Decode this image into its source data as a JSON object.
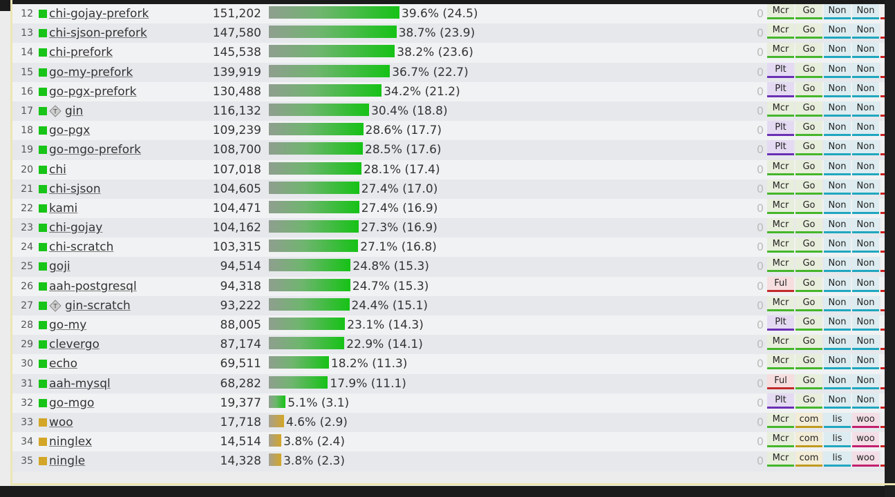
{
  "rows": [
    {
      "rank": "12",
      "lang": "go",
      "name": "chi-gojay-prefork",
      "rps": "151,202",
      "pct_label": "39.6% (24.5)",
      "pct": 39.6,
      "test": false,
      "errors": "0",
      "tags": [
        "Mcr",
        "Go",
        "Non",
        "Non"
      ]
    },
    {
      "rank": "13",
      "lang": "go",
      "name": "chi-sjson-prefork",
      "rps": "147,580",
      "pct_label": "38.7% (23.9)",
      "pct": 38.7,
      "test": false,
      "errors": "0",
      "tags": [
        "Mcr",
        "Go",
        "Non",
        "Non"
      ]
    },
    {
      "rank": "14",
      "lang": "go",
      "name": "chi-prefork",
      "rps": "145,538",
      "pct_label": "38.2% (23.6)",
      "pct": 38.2,
      "test": false,
      "errors": "0",
      "tags": [
        "Mcr",
        "Go",
        "Non",
        "Non"
      ]
    },
    {
      "rank": "15",
      "lang": "go",
      "name": "go-my-prefork",
      "rps": "139,919",
      "pct_label": "36.7% (22.7)",
      "pct": 36.7,
      "test": false,
      "errors": "0",
      "tags": [
        "Plt",
        "Go",
        "Non",
        "Non"
      ]
    },
    {
      "rank": "16",
      "lang": "go",
      "name": "go-pgx-prefork",
      "rps": "130,488",
      "pct_label": "34.2% (21.2)",
      "pct": 34.2,
      "test": false,
      "errors": "0",
      "tags": [
        "Plt",
        "Go",
        "Non",
        "Non"
      ]
    },
    {
      "rank": "17",
      "lang": "go",
      "name": "gin",
      "rps": "116,132",
      "pct_label": "30.4% (18.8)",
      "pct": 30.4,
      "test": true,
      "errors": "0",
      "tags": [
        "Mcr",
        "Go",
        "Non",
        "Non"
      ]
    },
    {
      "rank": "18",
      "lang": "go",
      "name": "go-pgx",
      "rps": "109,239",
      "pct_label": "28.6% (17.7)",
      "pct": 28.6,
      "test": false,
      "errors": "0",
      "tags": [
        "Plt",
        "Go",
        "Non",
        "Non"
      ]
    },
    {
      "rank": "19",
      "lang": "go",
      "name": "go-mgo-prefork",
      "rps": "108,700",
      "pct_label": "28.5% (17.6)",
      "pct": 28.5,
      "test": false,
      "errors": "0",
      "tags": [
        "Plt",
        "Go",
        "Non",
        "Non"
      ]
    },
    {
      "rank": "20",
      "lang": "go",
      "name": "chi",
      "rps": "107,018",
      "pct_label": "28.1% (17.4)",
      "pct": 28.1,
      "test": false,
      "errors": "0",
      "tags": [
        "Mcr",
        "Go",
        "Non",
        "Non"
      ]
    },
    {
      "rank": "21",
      "lang": "go",
      "name": "chi-sjson",
      "rps": "104,605",
      "pct_label": "27.4% (17.0)",
      "pct": 27.4,
      "test": false,
      "errors": "0",
      "tags": [
        "Mcr",
        "Go",
        "Non",
        "Non"
      ]
    },
    {
      "rank": "22",
      "lang": "go",
      "name": "kami",
      "rps": "104,471",
      "pct_label": "27.4% (16.9)",
      "pct": 27.4,
      "test": false,
      "errors": "0",
      "tags": [
        "Mcr",
        "Go",
        "Non",
        "Non"
      ]
    },
    {
      "rank": "23",
      "lang": "go",
      "name": "chi-gojay",
      "rps": "104,162",
      "pct_label": "27.3% (16.9)",
      "pct": 27.3,
      "test": false,
      "errors": "0",
      "tags": [
        "Mcr",
        "Go",
        "Non",
        "Non"
      ]
    },
    {
      "rank": "24",
      "lang": "go",
      "name": "chi-scratch",
      "rps": "103,315",
      "pct_label": "27.1% (16.8)",
      "pct": 27.1,
      "test": false,
      "errors": "0",
      "tags": [
        "Mcr",
        "Go",
        "Non",
        "Non"
      ]
    },
    {
      "rank": "25",
      "lang": "go",
      "name": "goji",
      "rps": "94,514",
      "pct_label": "24.8% (15.3)",
      "pct": 24.8,
      "test": false,
      "errors": "0",
      "tags": [
        "Mcr",
        "Go",
        "Non",
        "Non"
      ]
    },
    {
      "rank": "26",
      "lang": "go",
      "name": "aah-postgresql",
      "rps": "94,318",
      "pct_label": "24.7% (15.3)",
      "pct": 24.7,
      "test": false,
      "errors": "0",
      "tags": [
        "Ful",
        "Go",
        "Non",
        "Non"
      ]
    },
    {
      "rank": "27",
      "lang": "go",
      "name": "gin-scratch",
      "rps": "93,222",
      "pct_label": "24.4% (15.1)",
      "pct": 24.4,
      "test": true,
      "errors": "0",
      "tags": [
        "Mcr",
        "Go",
        "Non",
        "Non"
      ]
    },
    {
      "rank": "28",
      "lang": "go",
      "name": "go-my",
      "rps": "88,005",
      "pct_label": "23.1% (14.3)",
      "pct": 23.1,
      "test": false,
      "errors": "0",
      "tags": [
        "Plt",
        "Go",
        "Non",
        "Non"
      ]
    },
    {
      "rank": "29",
      "lang": "go",
      "name": "clevergo",
      "rps": "87,174",
      "pct_label": "22.9% (14.1)",
      "pct": 22.9,
      "test": false,
      "errors": "0",
      "tags": [
        "Mcr",
        "Go",
        "Non",
        "Non"
      ]
    },
    {
      "rank": "30",
      "lang": "go",
      "name": "echo",
      "rps": "69,511",
      "pct_label": "18.2% (11.3)",
      "pct": 18.2,
      "test": false,
      "errors": "0",
      "tags": [
        "Mcr",
        "Go",
        "Non",
        "Non"
      ]
    },
    {
      "rank": "31",
      "lang": "go",
      "name": "aah-mysql",
      "rps": "68,282",
      "pct_label": "17.9% (11.1)",
      "pct": 17.9,
      "test": false,
      "errors": "0",
      "tags": [
        "Ful",
        "Go",
        "Non",
        "Non"
      ]
    },
    {
      "rank": "32",
      "lang": "go",
      "name": "go-mgo",
      "rps": "19,377",
      "pct_label": "5.1% (3.1)",
      "pct": 5.1,
      "test": false,
      "errors": "0",
      "tags": [
        "Plt",
        "Go",
        "Non",
        "Non"
      ]
    },
    {
      "rank": "33",
      "lang": "other",
      "name": "woo",
      "rps": "17,718",
      "pct_label": "4.6% (2.9)",
      "pct": 4.6,
      "test": false,
      "errors": "0",
      "tags": [
        "Mcr",
        "com",
        "lis",
        "woo"
      ]
    },
    {
      "rank": "34",
      "lang": "other",
      "name": "ninglex",
      "rps": "14,514",
      "pct_label": "3.8% (2.4)",
      "pct": 3.8,
      "test": false,
      "errors": "0",
      "tags": [
        "Mcr",
        "com",
        "lis",
        "woo"
      ]
    },
    {
      "rank": "35",
      "lang": "other",
      "name": "ningle",
      "rps": "14,328",
      "pct_label": "3.8% (2.3)",
      "pct": 3.8,
      "test": false,
      "errors": "0",
      "tags": [
        "Mcr",
        "com",
        "lis",
        "woo"
      ]
    }
  ],
  "icons": {
    "lang_marker": "square-icon",
    "test_marker": "test-badge-icon"
  },
  "colors": {
    "go": "#17c417",
    "other": "#d3a628",
    "error_bar": "#cc1f1f"
  }
}
